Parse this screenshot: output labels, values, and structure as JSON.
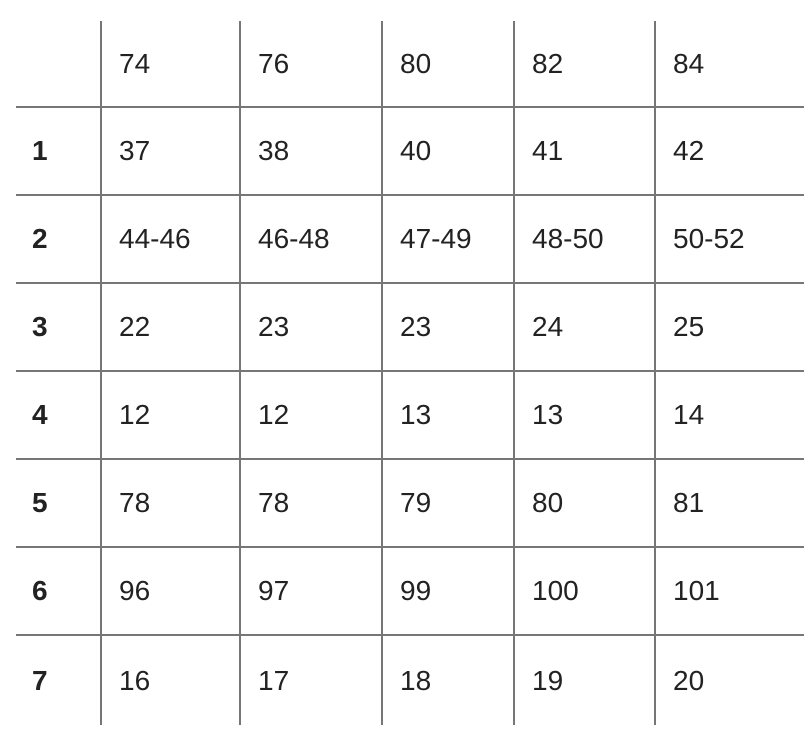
{
  "table": {
    "header": [
      "",
      "74",
      "76",
      "80",
      "82",
      "84"
    ],
    "rows": [
      [
        "1",
        "37",
        "38",
        "40",
        "41",
        "42"
      ],
      [
        "2",
        "44-46",
        "46-48",
        "47-49",
        "48-50",
        "50-52"
      ],
      [
        "3",
        "22",
        "23",
        "23",
        "24",
        "25"
      ],
      [
        "4",
        "12",
        "12",
        "13",
        "13",
        "14"
      ],
      [
        "5",
        "78",
        "78",
        "79",
        "80",
        "81"
      ],
      [
        "6",
        "96",
        "97",
        "99",
        "100",
        "101"
      ],
      [
        "7",
        "16",
        "17",
        "18",
        "19",
        "20"
      ]
    ]
  }
}
